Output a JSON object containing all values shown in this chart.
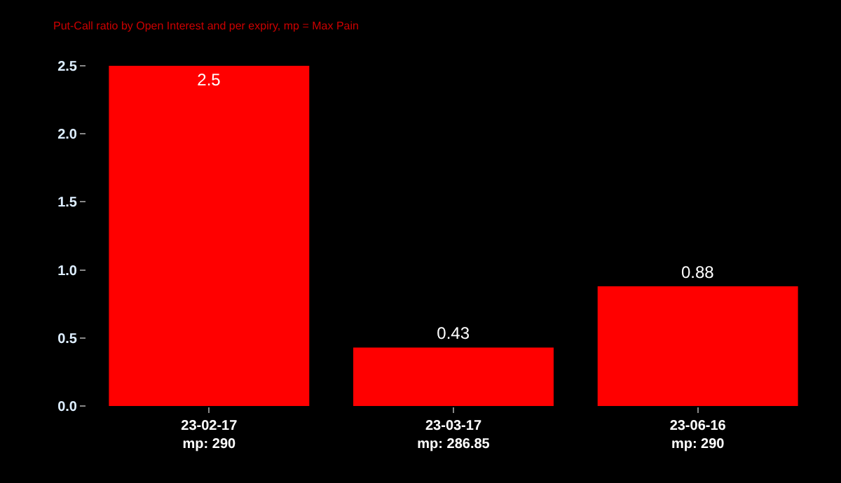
{
  "chart_data": {
    "type": "bar",
    "subtitle": "Put-Call ratio by Open Interest and per expiry, mp = Max Pain",
    "categories": [
      "23-02-17\nmp: 290",
      "23-03-17\nmp: 286.85",
      "23-06-16\nmp: 290"
    ],
    "values": [
      2.5,
      0.43,
      0.88
    ],
    "color": "#ff0000",
    "ylim": [
      0,
      2.5
    ],
    "yticks": [
      {
        "value": 0,
        "label": "0.0"
      },
      {
        "value": 0.5,
        "label": "0.5"
      },
      {
        "value": 1,
        "label": "1.0"
      },
      {
        "value": 1.5,
        "label": "1.5"
      },
      {
        "value": 2,
        "label": "2.0"
      },
      {
        "value": 2.5,
        "label": "2.5"
      }
    ],
    "data_labels": true,
    "grid": false
  }
}
